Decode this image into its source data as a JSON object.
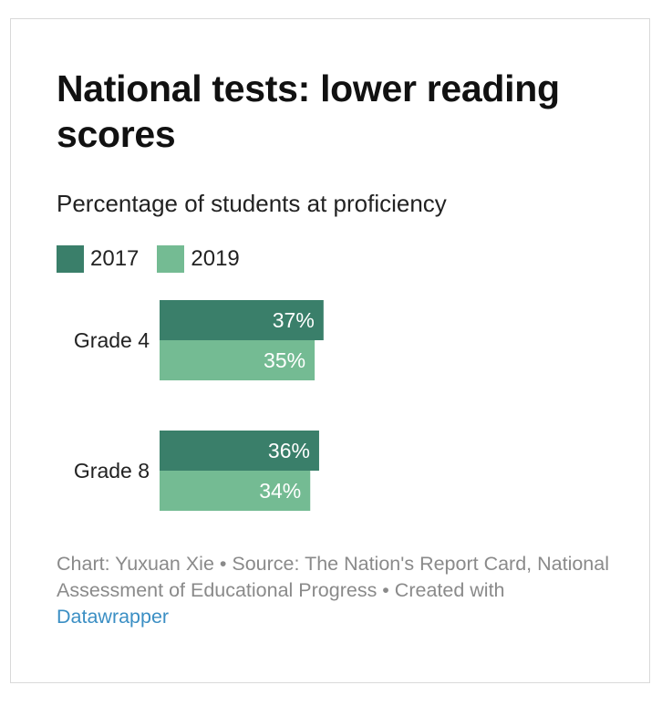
{
  "header": {
    "title": "National tests: lower reading scores",
    "subtitle": "Percentage of students at proficiency"
  },
  "legend": [
    {
      "label": "2017",
      "color": "#3a7f6a"
    },
    {
      "label": "2019",
      "color": "#74bb93"
    }
  ],
  "chart_data": {
    "type": "bar",
    "orientation": "horizontal",
    "categories": [
      "Grade 4",
      "Grade 8"
    ],
    "series": [
      {
        "name": "2017",
        "values": [
          37,
          36
        ],
        "labels": [
          "37%",
          "36%"
        ],
        "color": "#3a7f6a"
      },
      {
        "name": "2019",
        "values": [
          35,
          34
        ],
        "labels": [
          "35%",
          "34%"
        ],
        "color": "#74bb93"
      }
    ],
    "title": "National tests: lower reading scores",
    "subtitle": "Percentage of students at proficiency",
    "xlim": [
      0,
      100
    ],
    "grid": false,
    "legend_position": "top-left"
  },
  "footer": {
    "credit": "Chart: Yuxuan Xie • Source: The Nation's Report Card, National Assessment of Educational Progress • Created with ",
    "link": "Datawrapper"
  }
}
